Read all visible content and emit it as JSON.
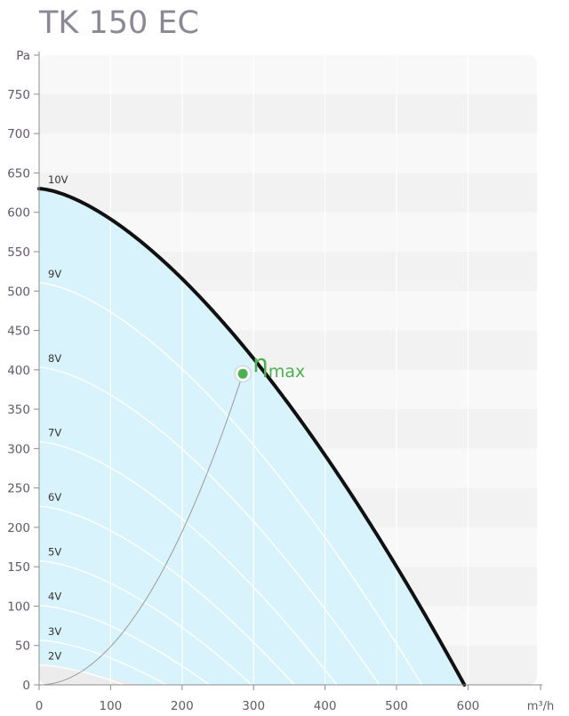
{
  "title": "TK 150 EC",
  "chart_data": {
    "type": "line",
    "title": "TK 150 EC",
    "xlabel": "m³/h",
    "ylabel": "Pa",
    "xlim": [
      0,
      700
    ],
    "ylim": [
      0,
      800
    ],
    "x_ticks": [
      "0",
      "100",
      "200",
      "300",
      "400",
      "500",
      "600"
    ],
    "y_ticks": [
      "0",
      "50",
      "100",
      "150",
      "200",
      "250",
      "300",
      "350",
      "400",
      "450",
      "500",
      "550",
      "600",
      "650",
      "700",
      "750"
    ],
    "series": [
      {
        "name": "10V",
        "voltage": 10,
        "x": [
          0,
          100,
          200,
          300,
          400,
          500,
          595
        ],
        "y": [
          630,
          578,
          501,
          385,
          255,
          130,
          0
        ]
      },
      {
        "name": "9V",
        "voltage": 9
      },
      {
        "name": "8V",
        "voltage": 8
      },
      {
        "name": "7V",
        "voltage": 7
      },
      {
        "name": "6V",
        "voltage": 6
      },
      {
        "name": "5V",
        "voltage": 5
      },
      {
        "name": "4V",
        "voltage": 4
      },
      {
        "name": "3V",
        "voltage": 3
      },
      {
        "name": "2V",
        "voltage": 2
      }
    ],
    "max_efficiency_point": {
      "label": "η",
      "subscript": "max",
      "x": 285,
      "y": 395
    },
    "colors": {
      "operating_area": "#d9f3fd",
      "curve_10v": "#111111",
      "max_point": "#4caf50",
      "band_dark": "#f2f2f2",
      "band_light": "#f8f8f8"
    },
    "grid": true
  }
}
